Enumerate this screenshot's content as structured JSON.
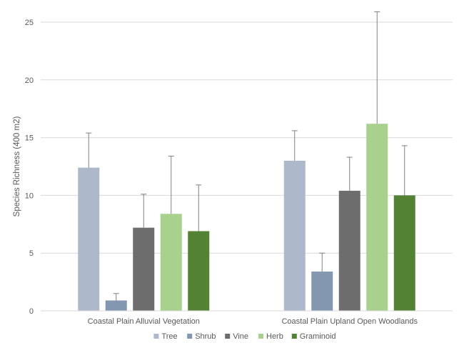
{
  "chart_data": {
    "type": "bar",
    "title": "",
    "xlabel": "",
    "ylabel": "Species Richness (400 m2)",
    "ylim": [
      0,
      25
    ],
    "yticks": [
      0,
      5,
      10,
      15,
      20,
      25
    ],
    "grid": true,
    "legend_position": "bottom",
    "categories": [
      "Coastal Plain Alluvial Vegetation",
      "Coastal Plain Upland Open Woodlands"
    ],
    "series": [
      {
        "name": "Tree",
        "color": "#adb9ca",
        "values": [
          12.4,
          13.0
        ],
        "error": [
          3.0,
          2.6
        ]
      },
      {
        "name": "Shrub",
        "color": "#8497b0",
        "values": [
          0.9,
          3.4
        ],
        "error": [
          0.6,
          1.6
        ]
      },
      {
        "name": "Vine",
        "color": "#6d6d6d",
        "values": [
          7.2,
          10.4
        ],
        "error": [
          2.9,
          2.9
        ]
      },
      {
        "name": "Herb",
        "color": "#a9d18e",
        "values": [
          8.4,
          16.2
        ],
        "error": [
          5.0,
          9.7
        ]
      },
      {
        "name": "Graminoid",
        "color": "#548235",
        "values": [
          6.9,
          10.0
        ],
        "error": [
          4.0,
          4.3
        ]
      }
    ]
  }
}
